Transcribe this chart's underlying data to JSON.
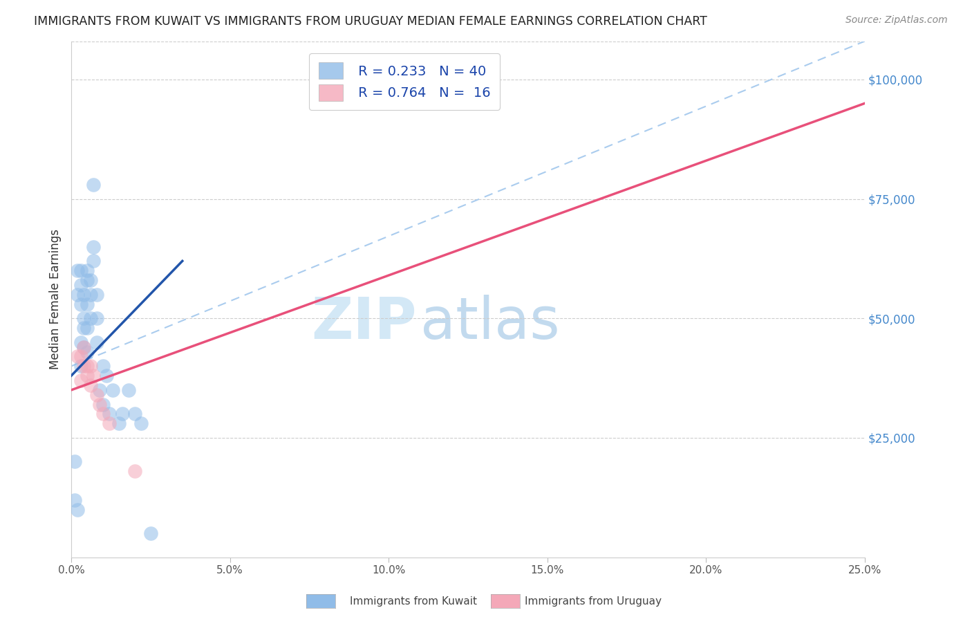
{
  "title": "IMMIGRANTS FROM KUWAIT VS IMMIGRANTS FROM URUGUAY MEDIAN FEMALE EARNINGS CORRELATION CHART",
  "source": "Source: ZipAtlas.com",
  "xlabel_ticks": [
    0.0,
    0.05,
    0.1,
    0.15,
    0.2,
    0.25
  ],
  "xlabel_labels": [
    "0.0%",
    "5.0%",
    "10.0%",
    "15.0%",
    "20.0%",
    "25.0%"
  ],
  "ylabel": "Median Female Earnings",
  "ylabel_right": [
    "$25,000",
    "$50,000",
    "$75,000",
    "$100,000"
  ],
  "ylabel_right_vals": [
    25000,
    50000,
    75000,
    100000
  ],
  "ylim": [
    0,
    108000
  ],
  "xlim": [
    0.0,
    0.25
  ],
  "kuwait_R": 0.233,
  "kuwait_N": 40,
  "uruguay_R": 0.764,
  "uruguay_N": 16,
  "kuwait_color": "#90bce8",
  "uruguay_color": "#f4a8b8",
  "kuwait_line_color": "#2255aa",
  "uruguay_line_color": "#e8507a",
  "dashed_line_color": "#aaccee",
  "kuwait_x": [
    0.001,
    0.001,
    0.002,
    0.002,
    0.002,
    0.003,
    0.003,
    0.003,
    0.003,
    0.003,
    0.004,
    0.004,
    0.004,
    0.004,
    0.005,
    0.005,
    0.005,
    0.005,
    0.005,
    0.006,
    0.006,
    0.006,
    0.007,
    0.007,
    0.007,
    0.008,
    0.008,
    0.008,
    0.009,
    0.01,
    0.01,
    0.011,
    0.012,
    0.013,
    0.015,
    0.016,
    0.018,
    0.02,
    0.022,
    0.025
  ],
  "kuwait_y": [
    20000,
    12000,
    60000,
    55000,
    10000,
    60000,
    57000,
    53000,
    45000,
    40000,
    55000,
    50000,
    48000,
    44000,
    60000,
    58000,
    53000,
    48000,
    43000,
    58000,
    55000,
    50000,
    65000,
    62000,
    78000,
    55000,
    50000,
    45000,
    35000,
    40000,
    32000,
    38000,
    30000,
    35000,
    28000,
    30000,
    35000,
    30000,
    28000,
    5000
  ],
  "uruguay_x": [
    0.002,
    0.003,
    0.003,
    0.004,
    0.004,
    0.005,
    0.005,
    0.006,
    0.006,
    0.007,
    0.008,
    0.009,
    0.01,
    0.012,
    0.02,
    0.13
  ],
  "uruguay_y": [
    42000,
    42000,
    37000,
    40000,
    44000,
    40000,
    38000,
    36000,
    40000,
    38000,
    34000,
    32000,
    30000,
    28000,
    18000,
    97000
  ],
  "kuwait_line_x": [
    0.0,
    0.035
  ],
  "kuwait_line_y": [
    38000,
    62000
  ],
  "uruguay_line_x": [
    0.0,
    0.25
  ],
  "uruguay_line_y": [
    35000,
    95000
  ],
  "dashed_line_x": [
    0.0,
    0.25
  ],
  "dashed_line_y": [
    40000,
    108000
  ],
  "legend_label_kuwait": "Immigrants from Kuwait",
  "legend_label_uruguay": "Immigrants from Uruguay"
}
